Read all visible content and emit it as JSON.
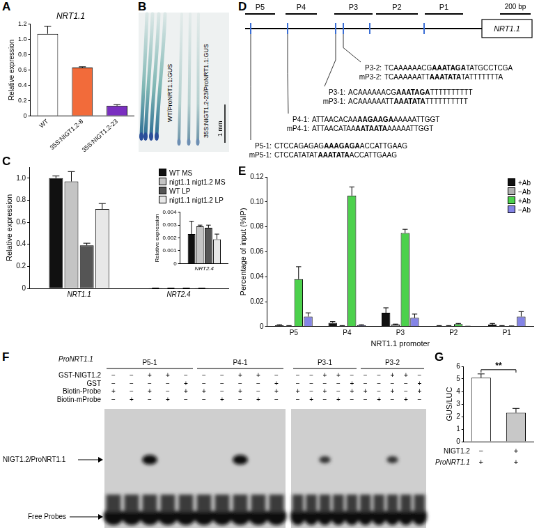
{
  "chart_data": [
    {
      "panel_label": "A",
      "type": "bar",
      "title": "NRT1.1",
      "y_label": "Relative expression",
      "categories": [
        "WT",
        "35S:NIGT1.2-8",
        "35S:NIGT1.2-23"
      ],
      "values": [
        1.07,
        0.63,
        0.13
      ],
      "errors": [
        0.1,
        0.01,
        0.015
      ],
      "colors": [
        "#ffffff",
        "#f26b3a",
        "#7a2fc0"
      ],
      "ylim": [
        0,
        1.2
      ],
      "yticks": [
        0,
        0.2,
        0.4,
        0.6,
        0.8,
        {
          "value": 1,
          "label": "1.0"
        },
        1.2
      ],
      "grid": false
    },
    {
      "panel_label": "C",
      "type": "bar",
      "y_label": "Relative expression",
      "categories": [
        "NRT1.1",
        "NRT2.4"
      ],
      "series": [
        {
          "name": "WT MS",
          "color": "#111111",
          "values": [
            1.0,
            0.0023
          ],
          "errors": [
            0.02,
            0.001
          ]
        },
        {
          "name": "nigt1.1 nigt1.2 MS",
          "color": "#c4c4c4",
          "values": [
            0.97,
            0.0029
          ],
          "errors": [
            0.09,
            0.0001
          ]
        },
        {
          "name": "WT LP",
          "color": "#555555",
          "values": [
            0.39,
            0.0028
          ],
          "errors": [
            0.02,
            0.0002
          ]
        },
        {
          "name": "nigt1.1 nigt1.2 LP",
          "color": "#e8e8e8",
          "values": [
            0.72,
            0.0019
          ],
          "errors": [
            0.05,
            0.0004
          ]
        }
      ],
      "ylim": [
        0,
        1.1
      ],
      "yticks": [
        0,
        0.2,
        0.4,
        0.6,
        0.8,
        {
          "value": 1,
          "label": "1.0"
        }
      ],
      "grid": false,
      "legend": "upper right",
      "inset": {
        "type": "bar",
        "y_label": "Relative expression",
        "categories": [
          "NRT2.4"
        ],
        "series": [
          {
            "color": "#111111",
            "values": [
              0.0023
            ],
            "errors": [
              0.001
            ]
          },
          {
            "color": "#c4c4c4",
            "values": [
              0.0029
            ],
            "errors": [
              0.0001
            ]
          },
          {
            "color": "#555555",
            "values": [
              0.0028
            ],
            "errors": [
              0.0002
            ]
          },
          {
            "color": "#e8e8e8",
            "values": [
              0.0019
            ],
            "errors": [
              0.0004
            ]
          }
        ],
        "ylim": [
          0,
          0.004
        ],
        "yticks": [
          0,
          0.001,
          0.002,
          0.003,
          0.004
        ],
        "grid": false
      }
    },
    {
      "panel_label": "E",
      "type": "bar",
      "y_label": "Percentage of input (%IP)",
      "x_label": "NRT1.1 promoter",
      "categories": [
        "P5",
        "P4",
        "P3",
        "P2",
        "P1"
      ],
      "series": [
        {
          "name": "+Ab",
          "color": "#111111",
          "values": [
            0.001,
            0.003,
            0.011,
            0.0005,
            0.0015
          ],
          "errors": [
            0.0005,
            0.001,
            0.004,
            0.0003,
            0.001
          ]
        },
        {
          "name": "−Ab",
          "color": "#b0b0b0",
          "values": [
            0.0005,
            0.0005,
            0.0015,
            0.0005,
            0.0005
          ],
          "errors": [
            0.0003,
            0.0003,
            0.0005,
            0.0003,
            0.0003
          ]
        },
        {
          "name": "+Ab",
          "color": "#4cd14c",
          "values": [
            0.038,
            0.105,
            0.075,
            0.002,
            0.0003
          ],
          "errors": [
            0.01,
            0.007,
            0.003,
            0.0005,
            0.0002
          ]
        },
        {
          "name": "−Ab",
          "color": "#8484e6",
          "values": [
            0.008,
            0.001,
            0.007,
            0.0002,
            0.008
          ],
          "errors": [
            0.003,
            0.0005,
            0.003,
            0.0001,
            0.004
          ]
        }
      ],
      "ylim": [
        0,
        0.12
      ],
      "yticks": [
        0,
        0.02,
        0.04,
        0.06,
        0.08,
        {
          "value": 0.1,
          "label": "0.10"
        },
        0.12
      ],
      "grid": false,
      "legend": "upper right"
    },
    {
      "panel_label": "G",
      "type": "bar",
      "y_label": "GUS/LUC",
      "categories": [
        null,
        null
      ],
      "values": [
        5.1,
        2.3
      ],
      "errors": [
        0.3,
        0.35
      ],
      "colors": [
        "#ffffff",
        "#c8c8c8"
      ],
      "ylim": [
        0,
        6
      ],
      "yticks": [
        0,
        1,
        2,
        3,
        4,
        5,
        6
      ],
      "grid": false,
      "annotation": "**",
      "x_table": [
        {
          "label": "NIGT1.2",
          "cells": [
            "−",
            "+"
          ]
        },
        {
          "label": "ProNRT1.1",
          "cells": [
            "+",
            "+"
          ]
        }
      ]
    }
  ],
  "panel_b": {
    "panel_label": "B",
    "labels": [
      "WT/ProNRT1.1:GUS",
      "35S:NIGT1.2-23/ProNRT1.1:GUS"
    ],
    "scale_bar": "1 mm"
  },
  "panel_d": {
    "panel_label": "D",
    "regions": [
      "P5",
      "P4",
      "P3",
      "P2",
      "P1"
    ],
    "gene": "NRT1.1",
    "scale_bar": "200 bp",
    "sequences": [
      {
        "label": "P3-2:",
        "prefix": "TCAAAAAACG",
        "motif": "AAATAGA",
        "suffix": "TATGCCTCGA"
      },
      {
        "label": "mP3-2:",
        "prefix": "TCAAAAAATT",
        "motif": "AAATATA",
        "suffix": "TATTTTTTTA"
      },
      {
        "label": "P3-1:",
        "prefix": "ACAAAAAACG",
        "motif": "AAATAGA",
        "suffix": "TTTTTTTTTT"
      },
      {
        "label": "mP3-1:",
        "prefix": "ACAAAAAATT",
        "motif": "AAATATA",
        "suffix": "TTTTTTTTTT"
      },
      {
        "label": "P4-1:",
        "prefix": "ATTAACACAA",
        "motif": "AAGAAGA",
        "suffix": "AAAAATTGGT"
      },
      {
        "label": "mP4-1:",
        "prefix": "ATTAACATAA",
        "motif": "AATAATA",
        "suffix": "AAAAATTGGT"
      },
      {
        "label": "P5-1:",
        "prefix": "CTCCAGAGAG",
        "motif": "AAAGAGA",
        "suffix": "ACCATTGAAG"
      },
      {
        "label": "mP5-1:",
        "prefix": "CTCCATATAT",
        "motif": "AAATATA",
        "suffix": "ACCATTGAAG"
      }
    ]
  },
  "panel_f": {
    "panel_label": "F",
    "promoter": "ProNRT1.1",
    "probes": [
      "P5-1",
      "P4-1",
      "P3-1",
      "P3-2"
    ],
    "rows": [
      {
        "label": "GST-NIGT1.2",
        "cells": [
          "−",
          "−",
          "+",
          "+",
          "−"
        ]
      },
      {
        "label": "GST",
        "cells": [
          "−",
          "−",
          "−",
          "−",
          "+"
        ]
      },
      {
        "label": "Biotin-Probe",
        "cells": [
          "+",
          "−",
          "+",
          "−",
          "+"
        ]
      },
      {
        "label": "Biotin-mProbe",
        "cells": [
          "−",
          "+",
          "−",
          "+",
          "−"
        ]
      }
    ],
    "band_labels": [
      "NIGT1.2/ProNRT1.1",
      "Free Probes"
    ]
  }
}
